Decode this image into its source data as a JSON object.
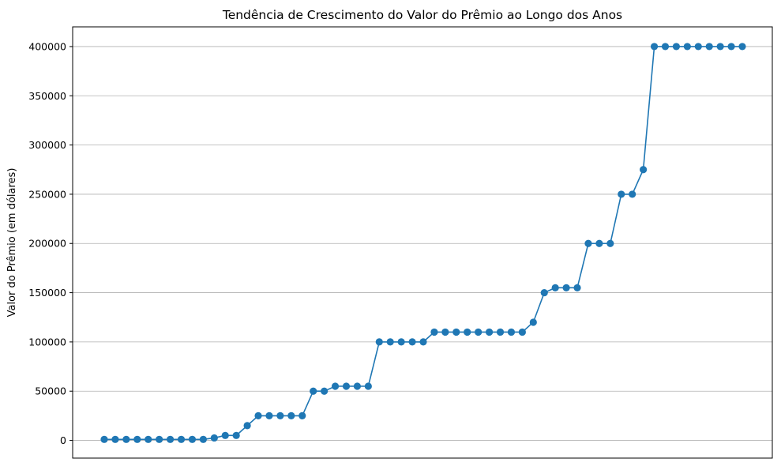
{
  "chart_data": {
    "type": "line",
    "title": "Tendência de Crescimento do Valor do Prêmio ao Longo dos Anos",
    "xlabel": "",
    "ylabel": "Valor do Prêmio (em dólares)",
    "ylim": [
      -18000,
      420000
    ],
    "yticks": [
      0,
      50000,
      100000,
      150000,
      200000,
      250000,
      300000,
      350000,
      400000
    ],
    "xticks_visible": false,
    "grid": "y-axis only",
    "marker": "circle",
    "series": [
      {
        "color": "#1f77b4",
        "values": [
          1000,
          1000,
          1000,
          1000,
          1000,
          1000,
          1000,
          1000,
          1000,
          1000,
          2500,
          5000,
          5000,
          15000,
          25000,
          25000,
          25000,
          25000,
          25000,
          50000,
          50000,
          55000,
          55000,
          55000,
          55000,
          100000,
          100000,
          100000,
          100000,
          100000,
          110000,
          110000,
          110000,
          110000,
          110000,
          110000,
          110000,
          110000,
          110000,
          120000,
          150000,
          155000,
          155000,
          155000,
          200000,
          200000,
          200000,
          250000,
          250000,
          275000,
          400000,
          400000,
          400000,
          400000,
          400000,
          400000,
          400000,
          400000,
          400000
        ]
      }
    ]
  }
}
